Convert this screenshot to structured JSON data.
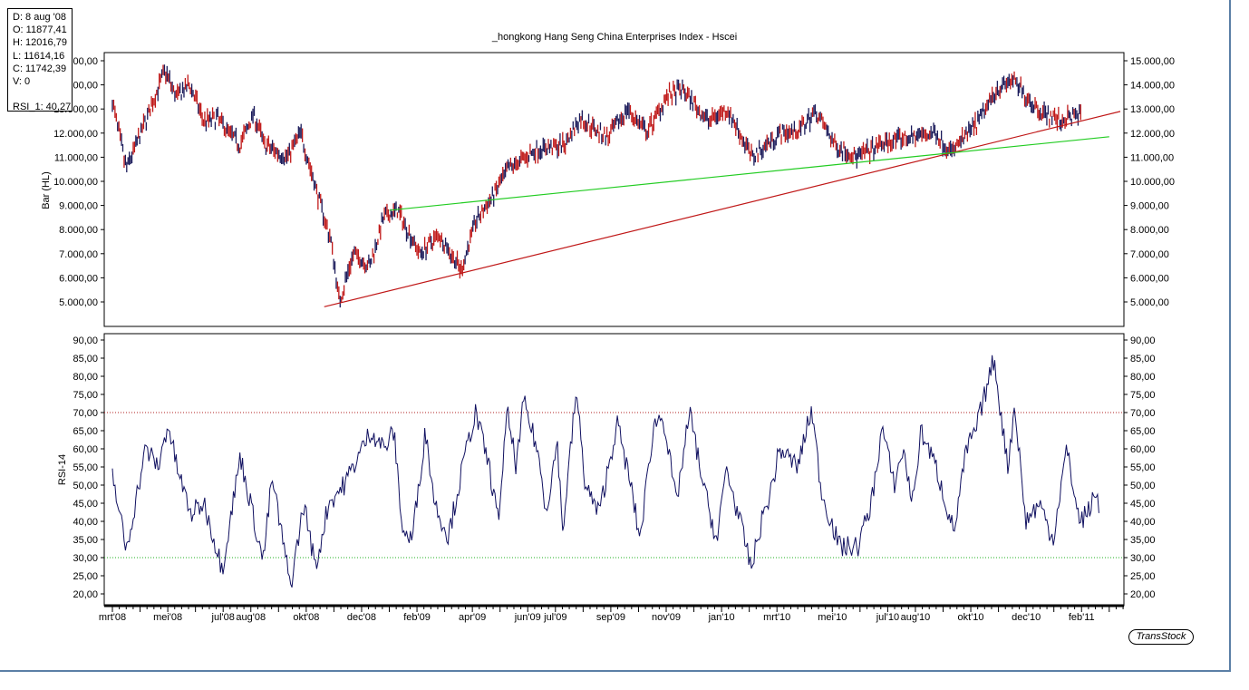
{
  "info": {
    "date": "D: 8 aug '08",
    "open": "O: 11877,41",
    "high": "H: 12016,79",
    "low": "L: 11614,16",
    "close": "C: 11742,39",
    "volume": "V: 0",
    "rsi": "RSI_1: 40,27"
  },
  "logo": "TransStock",
  "chart_data": [
    {
      "type": "line",
      "title": "_hongkong Hang Seng China Enterprises Index - Hscei",
      "ylabel": "Bar (HL)",
      "ylim": [
        4000,
        15500
      ],
      "yticks": [
        "5.000,00",
        "6.000,00",
        "7.000,00",
        "8.000,00",
        "9.000,00",
        "10.000,00",
        "11.000,00",
        "12.000,00",
        "13.000,00",
        "14.000,00",
        "15.000,00"
      ],
      "xticks": [
        "mrt'08",
        "mei'08",
        "jul'08",
        "aug'08",
        "okt'08",
        "dec'08",
        "feb'09",
        "apr'09",
        "jun'09",
        "jul'09",
        "sep'09",
        "nov'09",
        "jan'10",
        "mrt'10",
        "mei'10",
        "jul'10",
        "aug'10",
        "okt'10",
        "dec'10",
        "feb'11"
      ],
      "xtick_months": [
        0,
        2,
        4,
        5,
        7,
        9,
        11,
        13,
        15,
        16,
        18,
        20,
        22,
        24,
        26,
        28,
        29,
        31,
        33,
        35
      ],
      "x_unit": "months since mrt'08",
      "series": [
        {
          "name": "price",
          "x": [
            0,
            0.5,
            1.2,
            1.9,
            2.3,
            2.8,
            3.3,
            3.8,
            4.6,
            5.1,
            5.5,
            6.3,
            6.8,
            7.4,
            7.9,
            8.2,
            8.7,
            9.3,
            9.8,
            10.3,
            11.1,
            11.8,
            12.6,
            13.1,
            13.7,
            14.3,
            15.3,
            16.3,
            16.9,
            17.9,
            18.6,
            19.3,
            20.0,
            20.6,
            21.5,
            22.2,
            23.1,
            24.1,
            24.8,
            25.4,
            26.1,
            26.9,
            27.9,
            28.7,
            29.7,
            30.3,
            31.3,
            31.9,
            32.5,
            33.4,
            34.2,
            35.0
          ],
          "y": [
            13300,
            10500,
            12500,
            14600,
            13500,
            14000,
            12500,
            12600,
            11500,
            12800,
            11500,
            11000,
            12000,
            9500,
            7500,
            5000,
            7000,
            6500,
            8500,
            8800,
            7000,
            7800,
            6300,
            8300,
            9300,
            10500,
            11300,
            11500,
            12600,
            11800,
            13000,
            12000,
            13500,
            13800,
            12500,
            13000,
            11000,
            12000,
            12100,
            12900,
            11500,
            11000,
            11600,
            11800,
            12000,
            11200,
            12500,
            13800,
            14200,
            13000,
            12500,
            12800
          ]
        },
        {
          "name": "trend-red",
          "x": [
            7.65,
            36.4
          ],
          "y": [
            4800,
            12900
          ]
        },
        {
          "name": "trend-green",
          "x": [
            10.0,
            36.0
          ],
          "y": [
            8800,
            11850
          ]
        }
      ]
    },
    {
      "type": "line",
      "ylabel": "RSI-14",
      "ylim": [
        17,
        91
      ],
      "yticks": [
        "20,00",
        "25,00",
        "30,00",
        "35,00",
        "40,00",
        "45,00",
        "50,00",
        "55,00",
        "60,00",
        "65,00",
        "70,00",
        "75,00",
        "80,00",
        "85,00",
        "90,00"
      ],
      "levels": [
        70,
        30
      ],
      "series": [
        {
          "name": "RSI-14",
          "x": [
            0,
            0.5,
            1.2,
            1.67,
            2.0,
            2.33,
            2.82,
            3.31,
            3.97,
            4.62,
            5.44,
            5.77,
            6.43,
            6.92,
            7.34,
            7.8,
            8.36,
            9.34,
            9.84,
            10.16,
            10.49,
            10.82,
            11.31,
            11.64,
            12.13,
            12.79,
            13.11,
            13.61,
            13.93,
            14.26,
            14.59,
            14.85,
            15.34,
            15.67,
            16.07,
            16.26,
            16.75,
            17.08,
            17.57,
            18.23,
            18.72,
            19.05,
            19.54,
            19.87,
            20.36,
            20.85,
            21.34,
            21.84,
            22.16,
            22.66,
            23.08,
            23.44,
            23.77,
            24.1,
            24.75,
            25.25,
            25.61,
            26.26,
            26.92,
            27.41,
            27.8,
            28.23,
            28.56,
            28.89,
            29.21,
            29.74,
            30.39,
            30.85,
            31.18,
            31.84,
            32.33,
            32.59,
            32.98,
            33.48,
            33.97,
            34.46,
            34.92,
            35.18,
            35.57,
            35.64
          ],
          "y": [
            53,
            32,
            60,
            55,
            67,
            55,
            42,
            45,
            27,
            58,
            29,
            52,
            22,
            45,
            27,
            45,
            50,
            65,
            60,
            65,
            37,
            35,
            65,
            45,
            36,
            60,
            70,
            55,
            40,
            70,
            55,
            73,
            60,
            43,
            62,
            37,
            76,
            50,
            42,
            67,
            50,
            35,
            66,
            70,
            45,
            70,
            50,
            34,
            55,
            40,
            27,
            40,
            48,
            60,
            55,
            71,
            48,
            33,
            33,
            45,
            66,
            50,
            60,
            45,
            65,
            55,
            37,
            60,
            65,
            85,
            55,
            72,
            40,
            45,
            35,
            60,
            40,
            42,
            48,
            40
          ]
        }
      ]
    }
  ]
}
